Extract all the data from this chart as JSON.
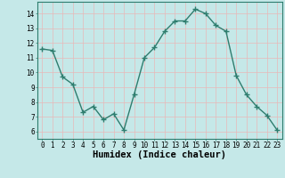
{
  "x": [
    0,
    1,
    2,
    3,
    4,
    5,
    6,
    7,
    8,
    9,
    10,
    11,
    12,
    13,
    14,
    15,
    16,
    17,
    18,
    19,
    20,
    21,
    22,
    23
  ],
  "y": [
    11.6,
    11.5,
    9.7,
    9.2,
    7.3,
    7.7,
    6.8,
    7.2,
    6.1,
    8.5,
    11.0,
    11.7,
    12.8,
    13.5,
    13.5,
    14.3,
    14.0,
    13.2,
    12.8,
    9.8,
    8.5,
    7.7,
    7.1,
    6.1
  ],
  "line_color": "#2e7d6e",
  "marker": "+",
  "bg_color": "#c5e8e8",
  "grid_color": "#e8b8b8",
  "xlabel": "Humidex (Indice chaleur)",
  "ylim": [
    5.5,
    14.8
  ],
  "xlim": [
    -0.5,
    23.5
  ],
  "yticks": [
    6,
    7,
    8,
    9,
    10,
    11,
    12,
    13,
    14
  ],
  "xticks": [
    0,
    1,
    2,
    3,
    4,
    5,
    6,
    7,
    8,
    9,
    10,
    11,
    12,
    13,
    14,
    15,
    16,
    17,
    18,
    19,
    20,
    21,
    22,
    23
  ],
  "tick_fontsize": 5.5,
  "xlabel_fontsize": 7.5,
  "line_width": 1.0,
  "marker_size": 4
}
